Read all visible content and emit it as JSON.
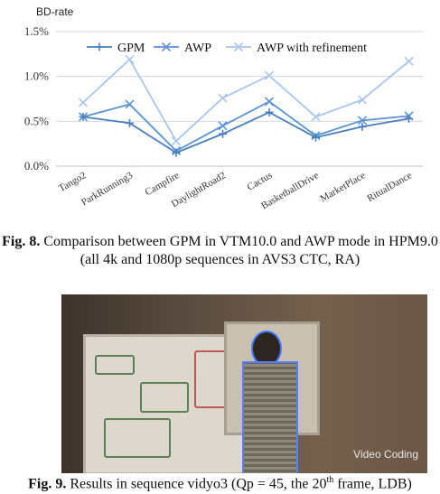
{
  "chart_data": {
    "type": "line",
    "ylabel": "BD-rate",
    "ylim": [
      0,
      1.5
    ],
    "yticks": [
      "0.0%",
      "0.5%",
      "1.0%",
      "1.5%"
    ],
    "grid": true,
    "legend_placement": "top",
    "categories": [
      "Tango2",
      "ParkRunning3",
      "Campfire",
      "DaylightRoad2",
      "Cactus",
      "BasketballDrive",
      "MarketPlace",
      "RitualDance"
    ],
    "series": [
      {
        "name": "GPM",
        "marker": "plus",
        "color": "#4a7fc1",
        "values": [
          0.55,
          0.48,
          0.15,
          0.36,
          0.6,
          0.32,
          0.44,
          0.53
        ]
      },
      {
        "name": "AWP",
        "marker": "x",
        "color": "#5b93d6",
        "values": [
          0.55,
          0.69,
          0.17,
          0.45,
          0.72,
          0.34,
          0.51,
          0.56
        ]
      },
      {
        "name": "AWP with refinement",
        "marker": "x",
        "color": "#a9c6ee",
        "values": [
          0.71,
          1.19,
          0.28,
          0.76,
          1.01,
          0.55,
          0.74,
          1.17
        ]
      }
    ]
  },
  "captions": {
    "fig8_label": "Fig. 8.",
    "fig8_text": " Comparison between GPM in VTM10.0 and AWP mode in HPM9.0 (all 4k and 1080p sequences in AVS3 CTC, RA)",
    "fig9_label": "Fig. 9.",
    "fig9_text": " Results in sequence vidyo3 (Qp = 45, the 20",
    "fig9_sup": "th",
    "fig9_tail": " frame, LDB)"
  },
  "watermark": "Video Coding"
}
